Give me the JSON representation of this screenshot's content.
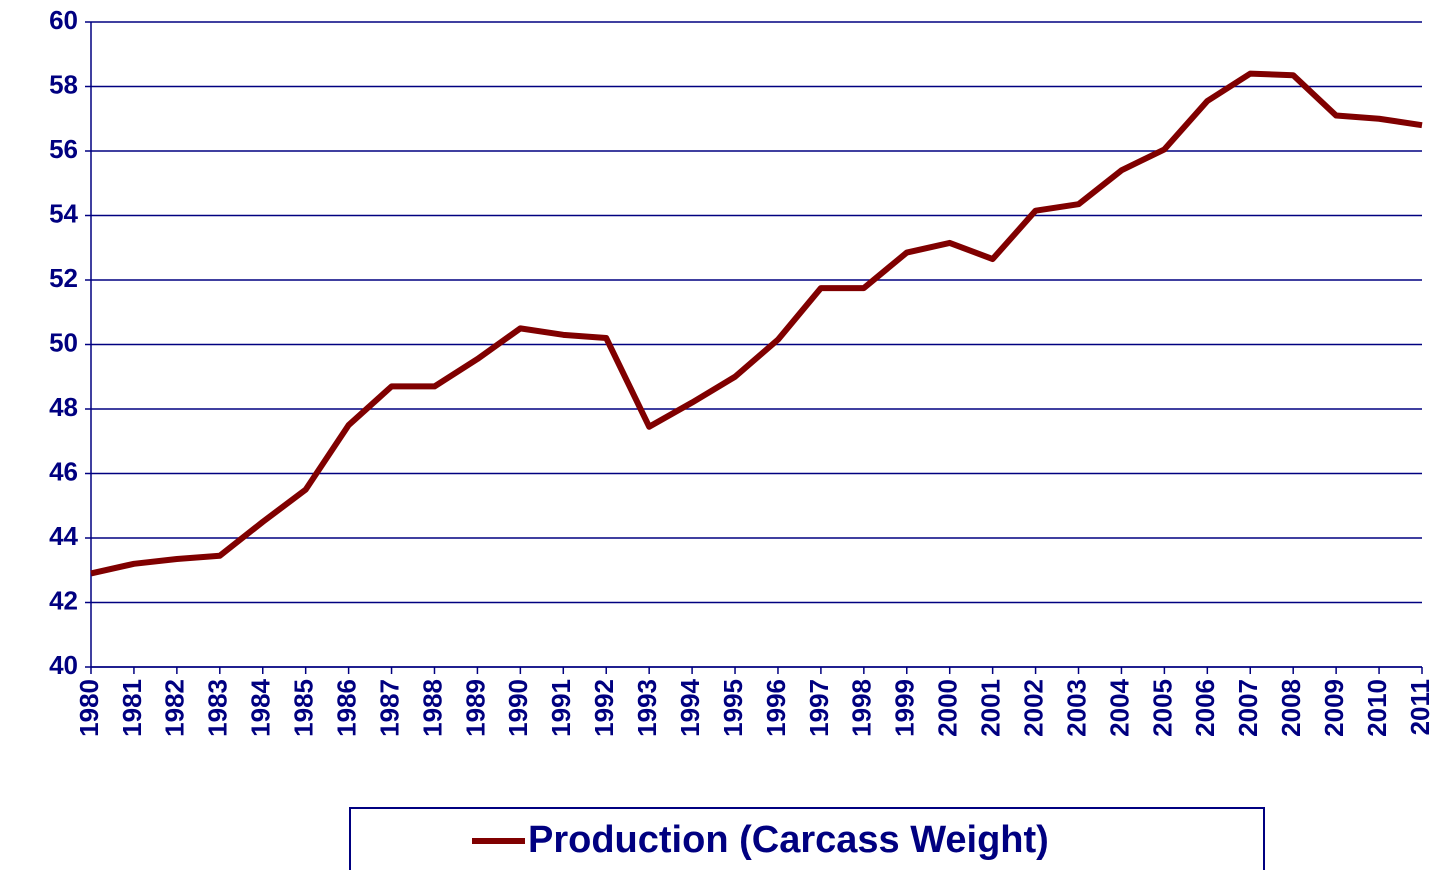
{
  "chart_data": {
    "type": "line",
    "categories": [
      "1980",
      "1981",
      "1982",
      "1983",
      "1984",
      "1985",
      "1986",
      "1987",
      "1988",
      "1989",
      "1990",
      "1991",
      "1992",
      "1993",
      "1994",
      "1995",
      "1996",
      "1997",
      "1998",
      "1999",
      "2000",
      "2001",
      "2002",
      "2003",
      "2004",
      "2005",
      "2006",
      "2007",
      "2008",
      "2009",
      "2010",
      "2011"
    ],
    "series": [
      {
        "name": "Production (Carcass Weight)",
        "color": "#800000",
        "values": [
          42.9,
          43.2,
          43.35,
          43.45,
          44.5,
          45.5,
          47.5,
          48.7,
          48.7,
          49.55,
          50.5,
          50.3,
          50.2,
          47.45,
          48.2,
          49.0,
          50.15,
          51.75,
          51.75,
          52.85,
          53.15,
          52.65,
          54.15,
          54.35,
          55.4,
          56.05,
          57.55,
          58.4,
          58.35,
          57.1,
          57.0,
          56.8
        ]
      }
    ],
    "ylim": [
      40,
      60
    ],
    "yticks": [
      40,
      42,
      44,
      46,
      48,
      50,
      52,
      54,
      56,
      58,
      60
    ],
    "grid": true,
    "legend": "bottom"
  }
}
